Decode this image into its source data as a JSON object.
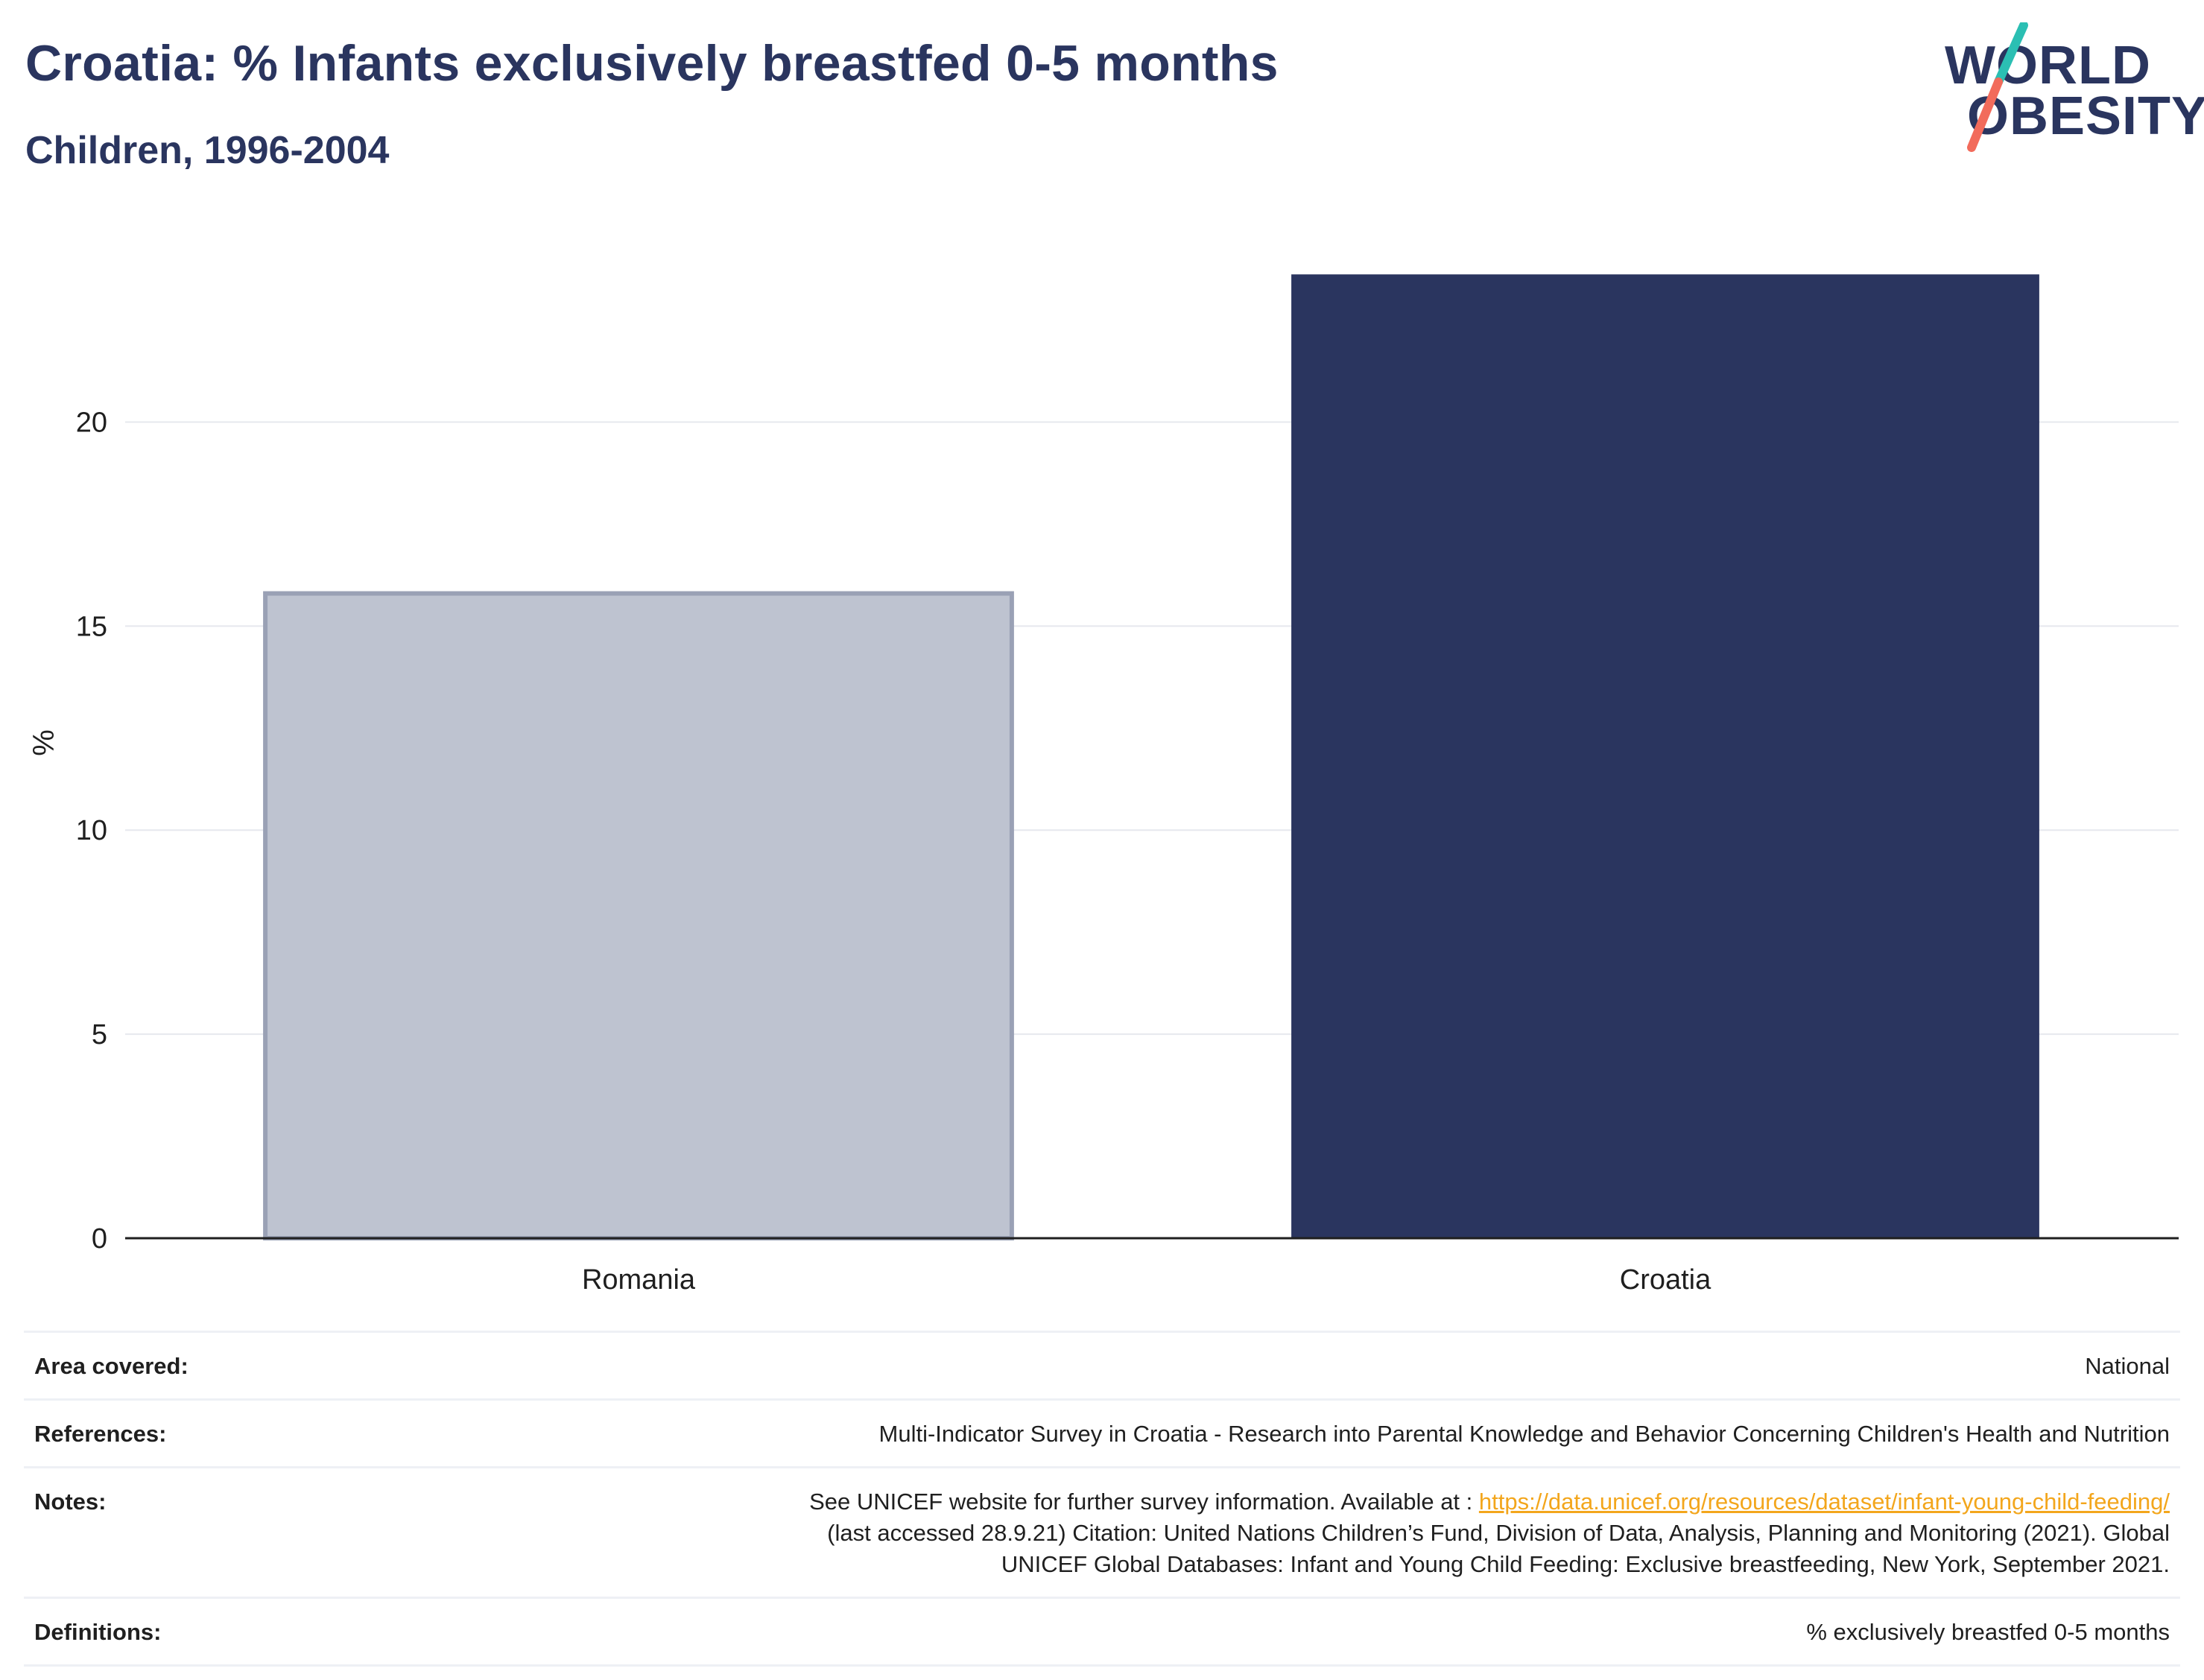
{
  "header": {
    "title": "Croatia: % Infants exclusively breastfed 0-5 months",
    "subtitle": "Children, 1996-2004"
  },
  "logo": {
    "line1": "WORLD",
    "line2": "OBESITY",
    "slash_colors": [
      "#2bbfb3",
      "#f26b5b"
    ]
  },
  "chart_data": {
    "type": "bar",
    "categories": [
      "Romania",
      "Croatia"
    ],
    "values": [
      15.8,
      23.6
    ],
    "highlight": "Croatia",
    "colors": {
      "highlight": "#2a355f",
      "other_fill": "#bec3d0",
      "other_stroke": "#9aa1b5",
      "grid": "#e6e8ee",
      "axis": "#1f1f1f"
    },
    "ylabel": "%",
    "xlabel": "",
    "ylim": [
      0,
      24.5
    ],
    "yticks": [
      0,
      5,
      10,
      15,
      20
    ],
    "grid": true
  },
  "meta": {
    "area_label": "Area covered:",
    "area_value": "National",
    "references_label": "References:",
    "references_value": "Multi-Indicator Survey in Croatia - Research into Parental Knowledge and Behavior Concerning Children's Health and Nutrition",
    "notes_label": "Notes:",
    "notes_line1_prefix": "See UNICEF website for further survey information. Available at : ",
    "notes_link": "https://data.unicef.org/resources/dataset/infant-young-child-feeding/",
    "notes_line2": "(last accessed 28.9.21) Citation: United Nations Children’s Fund, Division of Data, Analysis, Planning and Monitoring (2021). Global",
    "notes_line3": "UNICEF Global Databases: Infant and Young Child Feeding: Exclusive breastfeeding, New York, September 2021.",
    "definitions_label": "Definitions:",
    "definitions_value": "% exclusively breastfed 0-5 months"
  }
}
